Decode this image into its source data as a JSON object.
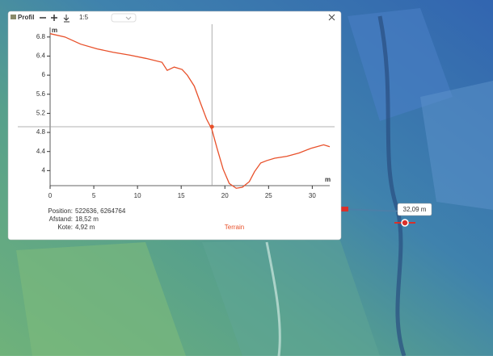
{
  "toolbar": {
    "title": "Profil",
    "scale": "1:5"
  },
  "chart_data": {
    "type": "line",
    "x_label": "m",
    "y_label": "m",
    "x": [
      0,
      1.7,
      3.5,
      5.4,
      7.2,
      9.1,
      11,
      12.8,
      13.4,
      14.2,
      15.1,
      15.7,
      16.5,
      17.2,
      17.9,
      18.5,
      19.1,
      19.8,
      20.5,
      21.3,
      22,
      22.8,
      23.4,
      24.1,
      24.8,
      25.7,
      27.1,
      28.5,
      29.9,
      31.3,
      32
    ],
    "series": [
      {
        "name": "Terrain",
        "color": "#e8502a",
        "values": [
          6.87,
          6.8,
          6.65,
          6.55,
          6.48,
          6.42,
          6.35,
          6.27,
          6.1,
          6.17,
          6.12,
          6.0,
          5.77,
          5.42,
          5.08,
          4.87,
          4.47,
          4.03,
          3.73,
          3.63,
          3.65,
          3.77,
          3.98,
          4.16,
          4.21,
          4.26,
          4.3,
          4.37,
          4.47,
          4.54,
          4.5
        ]
      }
    ],
    "xlim": [
      0,
      32
    ],
    "xticks": [
      0,
      5,
      10,
      15,
      20,
      25,
      30
    ],
    "ylim": [
      3.6,
      7.0
    ],
    "yticks": [
      4,
      4.4,
      4.8,
      5.2,
      5.6,
      6,
      6.4,
      6.8
    ],
    "crosshair": {
      "x": 18.52,
      "y": 4.92
    }
  },
  "info": [
    {
      "label": "Position:",
      "value": "522636, 6264764"
    },
    {
      "label": "Afstand:",
      "value": "18,52 m"
    },
    {
      "label": "Kote:",
      "value": "4,92 m"
    }
  ],
  "map": {
    "measure_label": "32,09 m"
  }
}
